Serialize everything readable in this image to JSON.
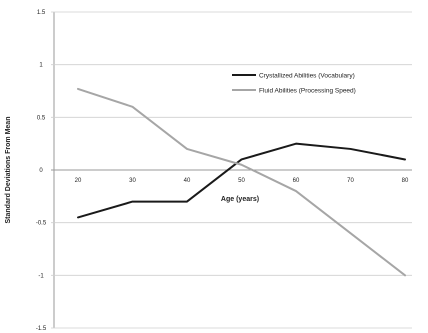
{
  "chart_data": {
    "type": "line",
    "xlabel": "Age (years)",
    "ylabel": "Standard Deviations From Mean",
    "x": [
      "20",
      "30",
      "40",
      "50",
      "60",
      "70",
      "80"
    ],
    "ylim": [
      -1.5,
      1.5
    ],
    "yticks": [
      1.5,
      1,
      0.5,
      0,
      -0.5,
      -1,
      -1.5
    ],
    "ytick_labels": [
      "1.5",
      "1",
      "0.5",
      "0",
      "-0.5",
      "-1",
      "-1.5"
    ],
    "grid": true,
    "legend_position": "top-right",
    "series": [
      {
        "name": "Crystallized Abilities (Vocabulary)",
        "color": "#1a1a1a",
        "values": [
          -0.45,
          -0.3,
          -0.3,
          0.1,
          0.25,
          0.2,
          0.1
        ]
      },
      {
        "name": "Fluid Abilities (Processing Speed)",
        "color": "#a6a6a6",
        "values": [
          0.77,
          0.6,
          0.2,
          0.05,
          -0.2,
          -0.6,
          -1.0
        ]
      }
    ]
  }
}
